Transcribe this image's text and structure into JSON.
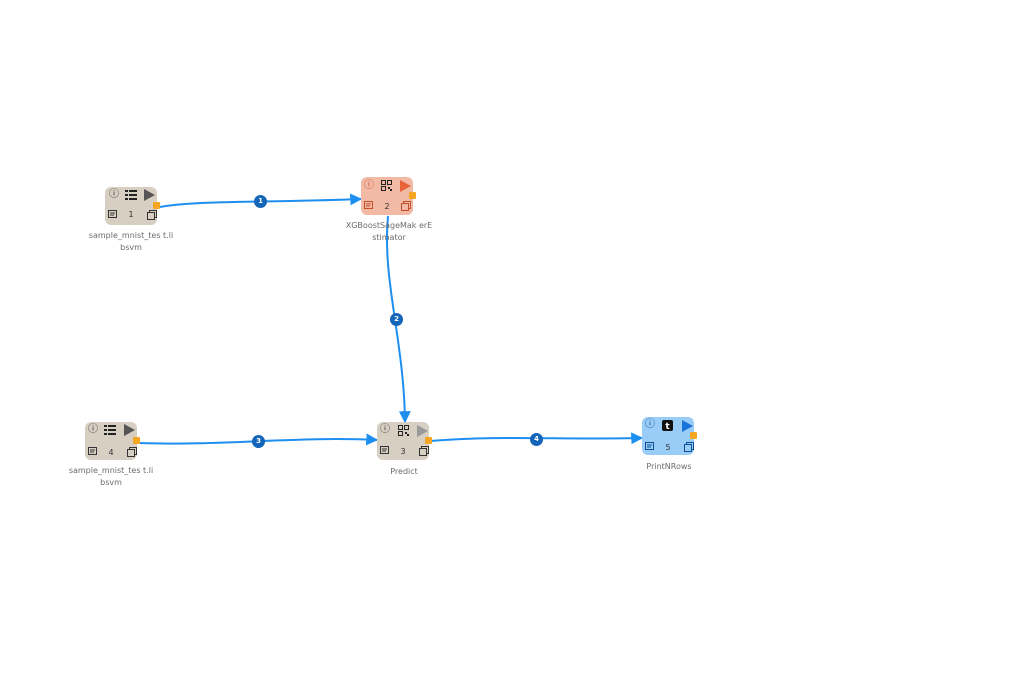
{
  "nodes": [
    {
      "id": "1",
      "label": "sample_mnist_tes t.libsvm",
      "type": "source",
      "color": "#d7cfc2",
      "play_color": "#555555",
      "body_icon": "table-icon"
    },
    {
      "id": "2",
      "label": "XGBoostSageMak erEstimator",
      "type": "estimator",
      "color": "#f2b9a4",
      "play_color": "#e8633a",
      "body_icon": "qr-icon"
    },
    {
      "id": "3",
      "label": "Predict",
      "type": "transform",
      "color": "#d7cfc2",
      "play_color": "#999999",
      "body_icon": "qr-icon"
    },
    {
      "id": "4",
      "label": "sample_mnist_tes t.libsvm",
      "type": "source",
      "color": "#d7cfc2",
      "play_color": "#555555",
      "body_icon": "table-icon"
    },
    {
      "id": "5",
      "label": "PrintNRows",
      "type": "sink",
      "color": "#99ccf7",
      "play_color": "#1a73d8",
      "body_icon": "tumblr-icon"
    }
  ],
  "edges": [
    {
      "id": "1",
      "from": "1",
      "to": "2"
    },
    {
      "id": "2",
      "from": "2",
      "to": "3"
    },
    {
      "id": "3",
      "from": "4",
      "to": "3"
    },
    {
      "id": "4",
      "from": "3",
      "to": "5"
    }
  ],
  "colors": {
    "edge": "#1e8ff0",
    "badge": "#1565b8",
    "port": "#f5a623"
  }
}
